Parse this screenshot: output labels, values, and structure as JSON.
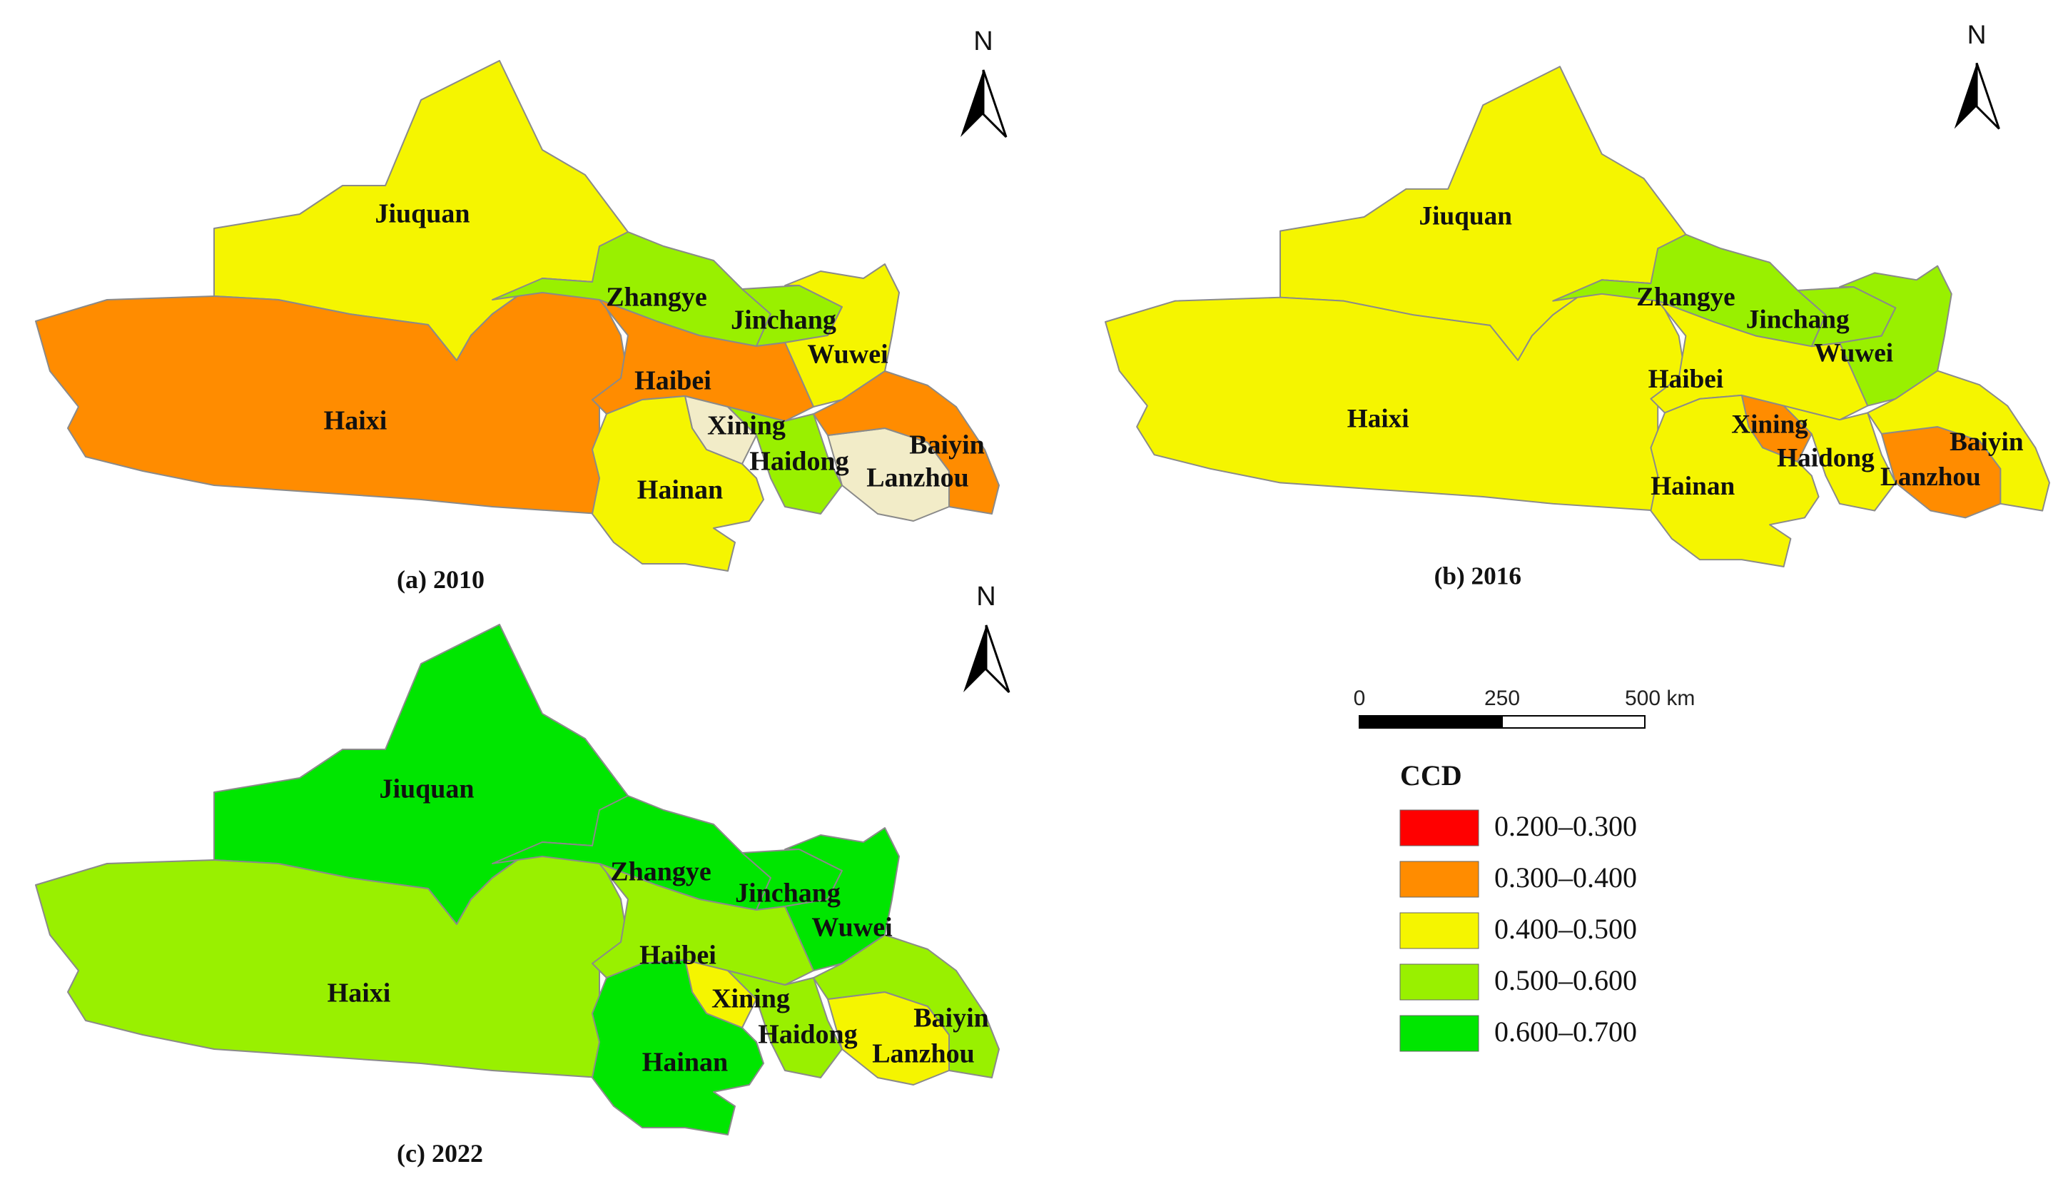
{
  "chart_data": {
    "type": "choropleth-map",
    "legend": {
      "title": "CCD",
      "classes": [
        {
          "key": "c1",
          "label": "0.200–0.300",
          "color": "#ff0000"
        },
        {
          "key": "c2",
          "label": "0.300–0.400",
          "color": "#ff8c00"
        },
        {
          "key": "c3",
          "label": "0.400–0.500",
          "color": "#f5f500"
        },
        {
          "key": "c4",
          "label": "0.500–0.600",
          "color": "#99f000"
        },
        {
          "key": "c5",
          "label": "0.600–0.700",
          "color": "#00e600"
        }
      ]
    },
    "panels": [
      {
        "caption": "(a)  2010",
        "classes": {
          "Jiuquan": "c3",
          "Haixi": "c2",
          "Zhangye": "c4",
          "Jinchang": "c4",
          "Wuwei": "c3",
          "Haibei": "c2",
          "Xining": "light",
          "Haidong": "c4",
          "Hainan": "c3",
          "Lanzhou": "light",
          "Baiyin": "c2"
        }
      },
      {
        "caption": "(b)  2016",
        "classes": {
          "Jiuquan": "c3",
          "Haixi": "c3",
          "Zhangye": "c4",
          "Jinchang": "c4",
          "Wuwei": "c4",
          "Haibei": "c3",
          "Xining": "c2",
          "Haidong": "c3",
          "Hainan": "c3",
          "Lanzhou": "c2",
          "Baiyin": "c3"
        }
      },
      {
        "caption": "(c)  2022",
        "classes": {
          "Jiuquan": "c5",
          "Haixi": "c4",
          "Zhangye": "c5",
          "Jinchang": "c5",
          "Wuwei": "c5",
          "Haibei": "c4",
          "Xining": "c3",
          "Haidong": "c4",
          "Hainan": "c5",
          "Lanzhou": "c3",
          "Baiyin": "c4"
        }
      }
    ],
    "unclassified_color": "#f2ecc8"
  },
  "north_arrow": {
    "letter": "N"
  },
  "scale_bar": {
    "ticks": [
      "0",
      "250",
      "500 km"
    ]
  }
}
